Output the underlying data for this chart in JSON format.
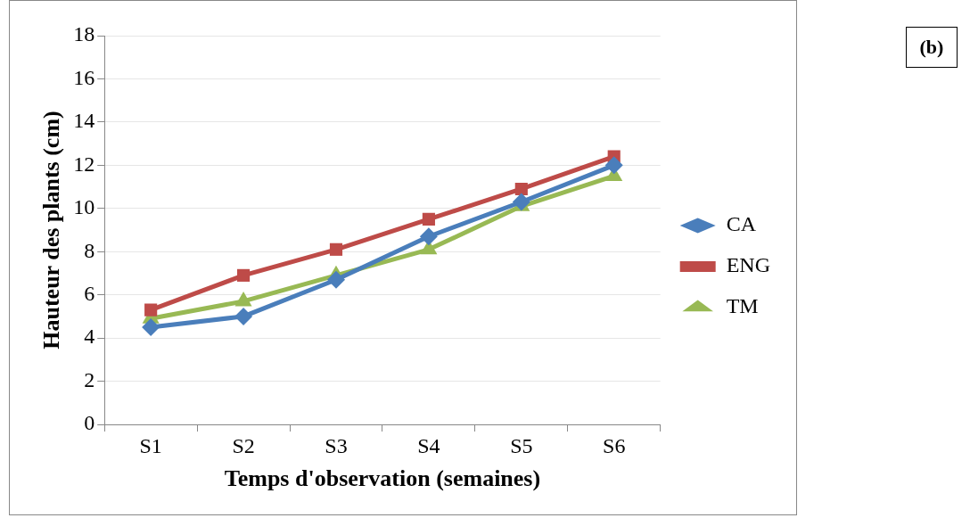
{
  "chart_data": {
    "type": "line",
    "xlabel": "Temps d'observation (semaines)",
    "ylabel": "Hauteur des plants (cm)",
    "annotations": [
      "(b)"
    ],
    "categories": [
      "S1",
      "S2",
      "S3",
      "S4",
      "S5",
      "S6"
    ],
    "series": [
      {
        "name": "CA",
        "color": "#4a7ebb",
        "marker": "diamond",
        "values": [
          4.5,
          5.0,
          6.7,
          8.7,
          10.3,
          12.0
        ]
      },
      {
        "name": "ENG",
        "color": "#be4b48",
        "marker": "square",
        "values": [
          5.3,
          6.9,
          8.1,
          9.5,
          10.9,
          12.4
        ]
      },
      {
        "name": "TM",
        "color": "#98b954",
        "marker": "triangle",
        "values": [
          4.9,
          5.7,
          6.9,
          8.1,
          10.1,
          11.5
        ]
      }
    ],
    "ylim": [
      0,
      18
    ],
    "yticks": [
      0,
      2,
      4,
      6,
      8,
      10,
      12,
      14,
      16,
      18
    ],
    "grid": "y",
    "legend": "right",
    "line_style": "solid"
  }
}
